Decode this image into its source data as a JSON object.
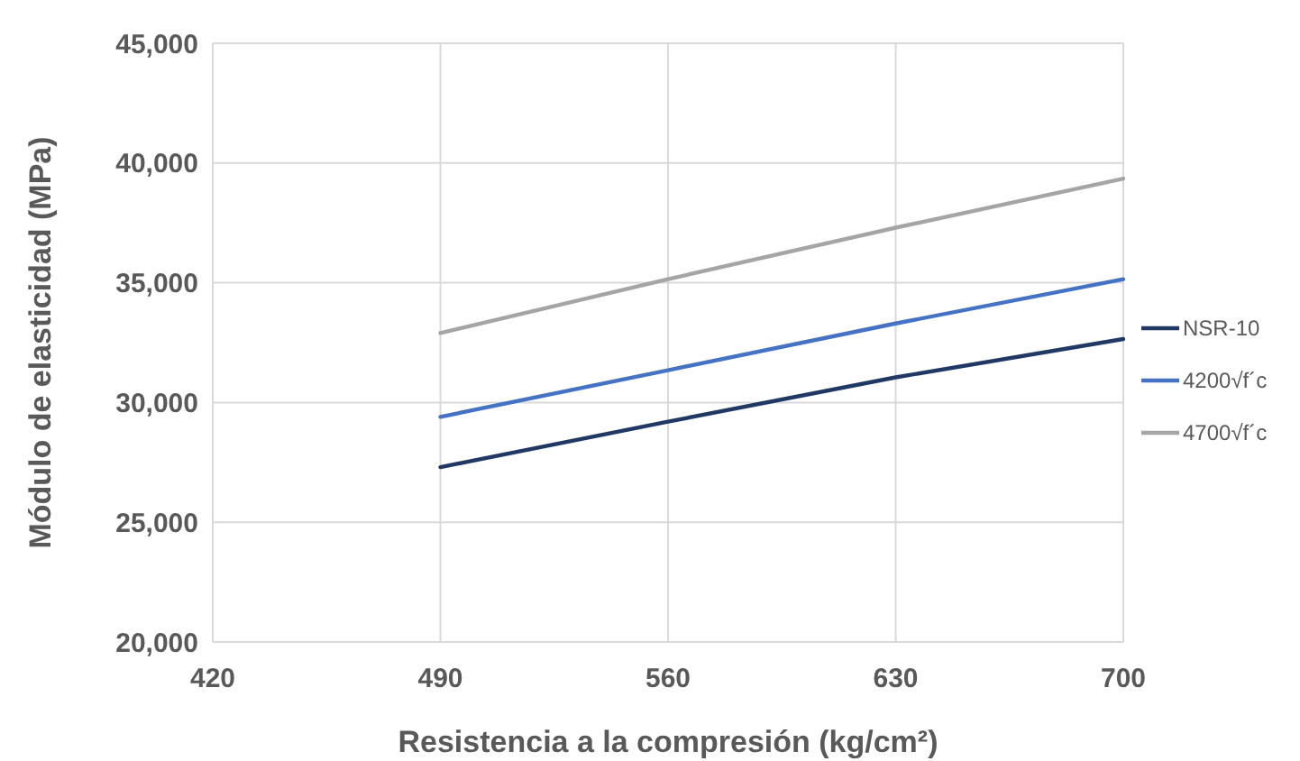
{
  "chart_data": {
    "type": "line",
    "xlabel": "Resistencia a la compresión (kg/cm²)",
    "ylabel": "Módulo de elasticidad (MPa)",
    "x": [
      490,
      560,
      630,
      700
    ],
    "series": [
      {
        "name": "NSR-10",
        "color": "#203864",
        "values": [
          27300,
          29200,
          31050,
          32650
        ]
      },
      {
        "name": "4200√f´c",
        "color": "#4472c4",
        "values": [
          29400,
          31350,
          33300,
          35150
        ]
      },
      {
        "name": "4700√f´c",
        "color": "#a5a5a5",
        "values": [
          32900,
          35150,
          37300,
          39350
        ]
      }
    ],
    "xlim": [
      420,
      700
    ],
    "xticks": [
      420,
      490,
      560,
      630,
      700
    ],
    "ylim": [
      20000,
      45000
    ],
    "yticks": [
      {
        "value": 20000,
        "label": "20,000"
      },
      {
        "value": 25000,
        "label": "25,000"
      },
      {
        "value": 30000,
        "label": "30,000"
      },
      {
        "value": 35000,
        "label": "35,000"
      },
      {
        "value": 40000,
        "label": "40,000"
      },
      {
        "value": 45000,
        "label": "45,000"
      }
    ],
    "grid": true,
    "legend": "right",
    "marker": "none",
    "line_style": "solid"
  }
}
